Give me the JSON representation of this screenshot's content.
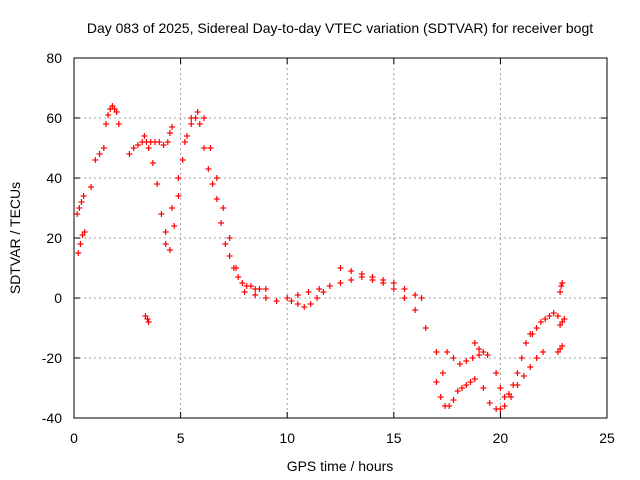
{
  "chart_data": {
    "type": "scatter",
    "title": "Day 083 of 2025, Sidereal Day-to-day VTEC variation (SDTVAR) for receiver bogt",
    "xlabel": "GPS time / hours",
    "ylabel": "SDTVAR / TECUs",
    "xlim": [
      0,
      25
    ],
    "ylim": [
      -40,
      80
    ],
    "xticks": [
      0,
      5,
      10,
      15,
      20,
      25
    ],
    "yticks": [
      -40,
      -20,
      0,
      20,
      40,
      60,
      80
    ],
    "grid": true,
    "marker": "+",
    "color": "#ff0000",
    "series": [
      {
        "name": "SDTVAR",
        "segments": [
          {
            "x": [
              0.2,
              0.3,
              0.4,
              0.5
            ],
            "y": [
              15,
              18,
              21,
              22
            ]
          },
          {
            "x": [
              0.15,
              0.25,
              0.35,
              0.45
            ],
            "y": [
              28,
              30,
              32,
              34
            ]
          },
          {
            "x": [
              0.8,
              1.0,
              1.2,
              1.4
            ],
            "y": [
              37,
              46,
              48,
              50
            ]
          },
          {
            "x": [
              1.5,
              1.6,
              1.7,
              1.8,
              1.9,
              2.0,
              2.1
            ],
            "y": [
              58,
              61,
              63,
              64,
              63,
              62,
              58
            ]
          },
          {
            "x": [
              2.6,
              2.8,
              3.0,
              3.2,
              3.4,
              3.6,
              3.8,
              4.0,
              4.2,
              4.4,
              4.5,
              4.6
            ],
            "y": [
              48,
              50,
              51,
              52,
              52,
              52,
              52,
              52,
              51,
              52,
              55,
              57
            ]
          },
          {
            "x": [
              3.3,
              3.5,
              3.7,
              3.9,
              4.1,
              4.3,
              4.5,
              4.7,
              4.9,
              5.1,
              5.3,
              5.5,
              5.7,
              5.9,
              6.1,
              6.3,
              6.5,
              6.7,
              6.9,
              7.1,
              7.3,
              7.5,
              7.7,
              7.9,
              8.1,
              8.3,
              8.5,
              8.7,
              9.0
            ],
            "y": [
              54,
              50,
              45,
              38,
              28,
              18,
              16,
              24,
              34,
              46,
              54,
              58,
              60,
              58,
              50,
              43,
              38,
              33,
              25,
              18,
              14,
              10,
              7,
              5,
              4,
              4,
              3,
              3,
              3
            ]
          },
          {
            "x": [
              4.3,
              4.6,
              4.9,
              5.2,
              5.5,
              5.8,
              6.1,
              6.4,
              6.7,
              7.0,
              7.3,
              7.6
            ],
            "y": [
              22,
              30,
              40,
              52,
              60,
              62,
              60,
              50,
              40,
              30,
              20,
              10
            ]
          },
          {
            "x": [
              3.35,
              3.45,
              3.5
            ],
            "y": [
              -6,
              -7,
              -8
            ]
          },
          {
            "x": [
              8.0,
              8.5,
              9.0,
              9.5,
              10.0,
              10.5,
              11.0,
              11.5,
              12.0,
              12.5,
              13.0,
              13.5,
              14.0,
              14.5,
              15.0,
              15.5,
              16.0,
              16.5,
              17.0,
              17.3
            ],
            "y": [
              2,
              1,
              0,
              -1,
              0,
              1,
              2,
              3,
              4,
              5,
              6,
              7,
              6,
              5,
              3,
              0,
              -4,
              -10,
              -18,
              -25
            ]
          },
          {
            "x": [
              10.2,
              10.5,
              10.8,
              11.1,
              11.4,
              11.7
            ],
            "y": [
              -1,
              -2,
              -3,
              -2,
              0,
              2
            ]
          },
          {
            "x": [
              12.5,
              13.0,
              13.5,
              14.0,
              14.5,
              15.0,
              15.5,
              16.0,
              16.3
            ],
            "y": [
              10,
              9,
              8,
              7,
              6,
              5,
              3,
              1,
              0
            ]
          },
          {
            "x": [
              17.0,
              17.2,
              17.4,
              17.6,
              17.8,
              18.0,
              18.2,
              18.4,
              18.6,
              18.8
            ],
            "y": [
              -28,
              -33,
              -36,
              -36,
              -34,
              -31,
              -30,
              -29,
              -28,
              -27
            ]
          },
          {
            "x": [
              17.5,
              17.8,
              18.1,
              18.4,
              18.7,
              19.0
            ],
            "y": [
              -18,
              -20,
              -22,
              -21,
              -20,
              -19
            ]
          },
          {
            "x": [
              18.8,
              19.0,
              19.2,
              19.4
            ],
            "y": [
              -15,
              -17,
              -18,
              -19
            ]
          },
          {
            "x": [
              19.2,
              19.5,
              19.8,
              20.0,
              20.2,
              20.5,
              20.8,
              21.1,
              21.4,
              21.7,
              22.0
            ],
            "y": [
              -30,
              -35,
              -37,
              -37,
              -36,
              -33,
              -29,
              -26,
              -23,
              -20,
              -18
            ]
          },
          {
            "x": [
              19.8,
              20.0,
              20.2,
              20.4,
              20.6,
              20.8,
              21.0,
              21.2,
              21.4
            ],
            "y": [
              -25,
              -30,
              -33,
              -32,
              -29,
              -25,
              -20,
              -15,
              -12
            ]
          },
          {
            "x": [
              21.5,
              21.7,
              21.9,
              22.1,
              22.3,
              22.5,
              22.7
            ],
            "y": [
              -12,
              -10,
              -8,
              -7,
              -6,
              -5,
              -6
            ]
          },
          {
            "x": [
              22.7,
              22.8,
              22.9
            ],
            "y": [
              -18,
              -17,
              -16
            ]
          },
          {
            "x": [
              22.8,
              22.9,
              23.0
            ],
            "y": [
              -9,
              -8,
              -7
            ]
          },
          {
            "x": [
              22.8,
              22.85,
              22.9
            ],
            "y": [
              2,
              4,
              5
            ]
          }
        ]
      }
    ]
  }
}
